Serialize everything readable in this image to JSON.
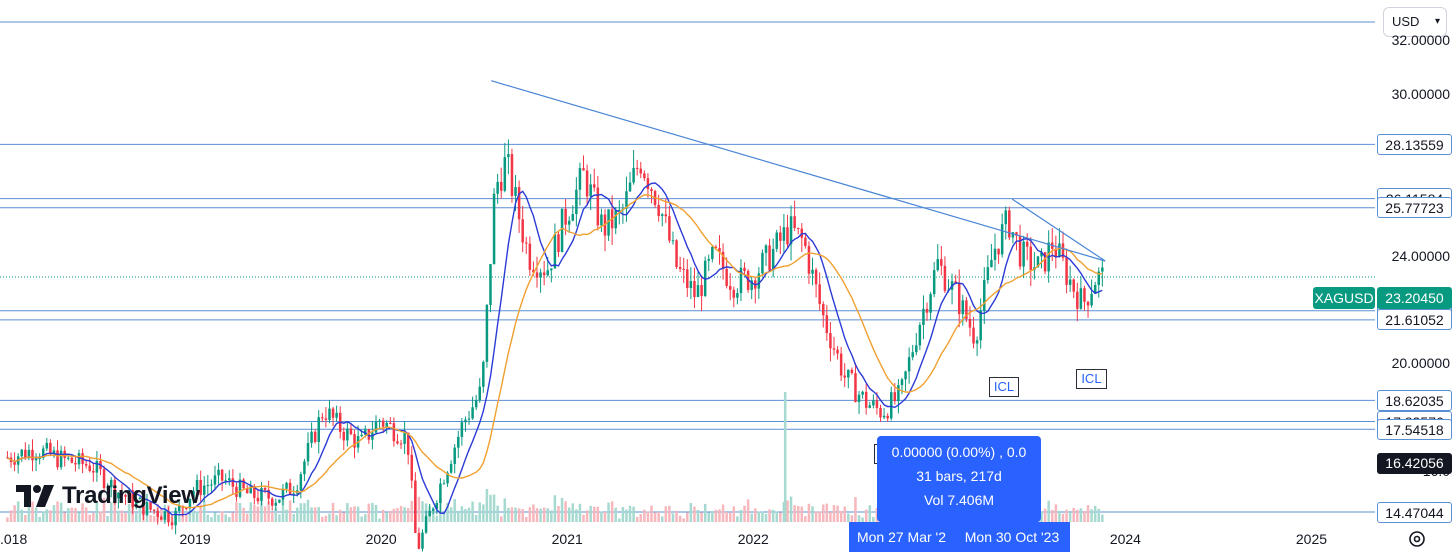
{
  "currency": "USD",
  "symbol": "XAGUSD",
  "last_price": "23.20450",
  "colors": {
    "up": "#089981",
    "down": "#f23645",
    "level_line": "#5b8fd3",
    "trend_line": "#4a86d6",
    "ma_fast": "#2b3bd6",
    "ma_slow": "#f0a030",
    "tooltip_bg": "#2962ff"
  },
  "price_axis": {
    "ticks": [
      {
        "label": "32.00000",
        "value": 32
      },
      {
        "label": "30.00000",
        "value": 30
      },
      {
        "label": "24.00000",
        "value": 24
      },
      {
        "label": "20.00000",
        "value": 20
      },
      {
        "label": "16.0",
        "value": 16
      }
    ]
  },
  "levels": [
    {
      "label": "28.13559",
      "value": 28.13559
    },
    {
      "label": "26.11584",
      "value": 26.11584
    },
    {
      "label": "25.77723",
      "value": 25.77723
    },
    {
      "label": "21.95127",
      "value": 21.95127
    },
    {
      "label": "21.61052",
      "value": 21.61052
    },
    {
      "label": "18.62035",
      "value": 18.62035
    },
    {
      "label": "17.83576",
      "value": 17.83576
    },
    {
      "label": "17.54518",
      "value": 17.54518
    },
    {
      "label": "14.47044",
      "value": 14.47044
    }
  ],
  "cursor_price": "16.42056",
  "icl_label": "ICL",
  "icl_markers": [
    {
      "year": 2022.73,
      "value": 17.3
    },
    {
      "year": 2023.35,
      "value": 19.8
    },
    {
      "year": 2023.82,
      "value": 20.1
    }
  ],
  "tooltip": {
    "line1": "0.00000 (0.00%) , 0.0",
    "line2": "31 bars, 217d",
    "line3": "Vol 7.406M"
  },
  "date_range": {
    "start": "Mon 27 Mar '2",
    "end": "Mon 30 Oct '23"
  },
  "branding": "TradingView",
  "chart_data": {
    "type": "candlestick",
    "x_axis": {
      "labels": [
        {
          "label": ".018",
          "year": 2018.0
        },
        {
          "label": "2019",
          "year": 2019.0
        },
        {
          "label": "2020",
          "year": 2020.0
        },
        {
          "label": "2021",
          "year": 2021.0
        },
        {
          "label": "2022",
          "year": 2022.0
        },
        {
          "label": "2023",
          "year": 2023.0
        },
        {
          "label": "2024",
          "year": 2024.0
        },
        {
          "label": "2025",
          "year": 2025.0
        }
      ],
      "range": [
        2017.96,
        2025.35
      ]
    },
    "y_range": [
      14.1,
      33.5
    ],
    "price_path": [
      [
        2018.0,
        16.5
      ],
      [
        2018.15,
        16.8
      ],
      [
        2018.3,
        16.4
      ],
      [
        2018.45,
        16.2
      ],
      [
        2018.6,
        15.2
      ],
      [
        2018.75,
        14.6
      ],
      [
        2018.9,
        14.3
      ],
      [
        2019.0,
        15.3
      ],
      [
        2019.15,
        15.7
      ],
      [
        2019.3,
        15.1
      ],
      [
        2019.45,
        15.0
      ],
      [
        2019.55,
        15.5
      ],
      [
        2019.62,
        16.8
      ],
      [
        2019.7,
        18.3
      ],
      [
        2019.8,
        17.5
      ],
      [
        2019.9,
        17.0
      ],
      [
        2020.0,
        17.9
      ],
      [
        2020.15,
        17.2
      ],
      [
        2020.2,
        13.0
      ],
      [
        2020.3,
        15.0
      ],
      [
        2020.45,
        17.8
      ],
      [
        2020.55,
        19.0
      ],
      [
        2020.62,
        26.5
      ],
      [
        2020.68,
        27.5
      ],
      [
        2020.8,
        24.0
      ],
      [
        2020.9,
        23.5
      ],
      [
        2021.0,
        25.5
      ],
      [
        2021.1,
        27.0
      ],
      [
        2021.2,
        25.0
      ],
      [
        2021.3,
        25.5
      ],
      [
        2021.4,
        27.6
      ],
      [
        2021.5,
        26.0
      ],
      [
        2021.6,
        23.5
      ],
      [
        2021.7,
        22.5
      ],
      [
        2021.8,
        24.0
      ],
      [
        2021.9,
        23.0
      ],
      [
        2022.0,
        23.2
      ],
      [
        2022.1,
        24.0
      ],
      [
        2022.2,
        25.0
      ],
      [
        2022.28,
        24.5
      ],
      [
        2022.38,
        21.8
      ],
      [
        2022.5,
        19.5
      ],
      [
        2022.62,
        18.5
      ],
      [
        2022.7,
        18.2
      ],
      [
        2022.8,
        18.8
      ],
      [
        2022.9,
        21.5
      ],
      [
        2023.0,
        23.7
      ],
      [
        2023.1,
        22.5
      ],
      [
        2023.2,
        21.0
      ],
      [
        2023.3,
        24.2
      ],
      [
        2023.38,
        25.3
      ],
      [
        2023.45,
        24.0
      ],
      [
        2023.55,
        23.5
      ],
      [
        2023.62,
        24.5
      ],
      [
        2023.7,
        23.2
      ],
      [
        2023.78,
        22.2
      ],
      [
        2023.85,
        23.2
      ],
      [
        2023.9,
        23.2
      ]
    ],
    "volume_spikes": [
      {
        "year": 2022.18,
        "value": 7.4
      }
    ],
    "trend_lines": [
      {
        "from": [
          2020.6,
          30.5
        ],
        "to": [
          2023.9,
          23.8
        ]
      },
      {
        "from": [
          2023.4,
          26.1
        ],
        "to": [
          2023.9,
          23.8
        ]
      }
    ]
  }
}
